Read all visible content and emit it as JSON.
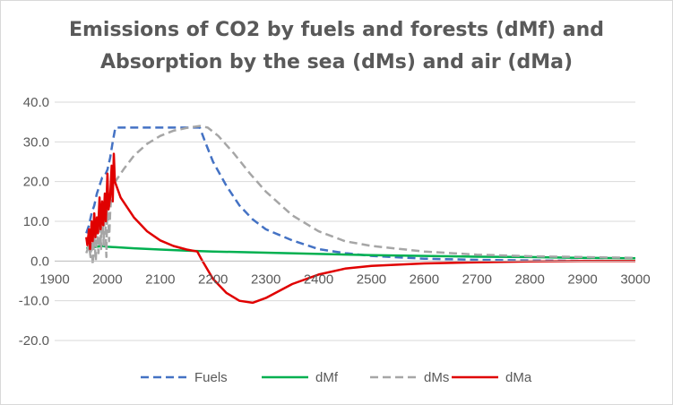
{
  "chart_data": {
    "type": "line",
    "title_lines": [
      "Emissions of CO2 by fuels and forests (dMf) and",
      "Absorption by the sea (dMs) and air (dMa)"
    ],
    "xlabel": "",
    "ylabel": "",
    "xlim": [
      1900,
      3000
    ],
    "ylim": [
      -20,
      40
    ],
    "x_ticks": [
      1900,
      2000,
      2100,
      2200,
      2300,
      2400,
      2500,
      2600,
      2700,
      2800,
      2900,
      3000
    ],
    "y_ticks": [
      "40.0",
      "30.0",
      "20.0",
      "10.0",
      "0.0",
      "-10.0",
      "-20.0"
    ],
    "y_tick_values": [
      40,
      30,
      20,
      10,
      0,
      -10,
      -20
    ],
    "grid": "horizontal",
    "legend_position": "bottom",
    "series": [
      {
        "name": "Fuels",
        "color": "#4472c4",
        "style": "dashed",
        "points": [
          [
            1960,
            7
          ],
          [
            1965,
            9
          ],
          [
            1970,
            12
          ],
          [
            1975,
            14
          ],
          [
            1980,
            17
          ],
          [
            1985,
            19
          ],
          [
            1990,
            21
          ],
          [
            1995,
            21.5
          ],
          [
            2000,
            23
          ],
          [
            2005,
            26
          ],
          [
            2010,
            30
          ],
          [
            2015,
            33.6
          ],
          [
            2050,
            33.6
          ],
          [
            2100,
            33.6
          ],
          [
            2150,
            33.6
          ],
          [
            2175,
            33.6
          ],
          [
            2185,
            30
          ],
          [
            2200,
            25
          ],
          [
            2225,
            19
          ],
          [
            2250,
            14
          ],
          [
            2275,
            10.5
          ],
          [
            2300,
            8
          ],
          [
            2350,
            5.2
          ],
          [
            2400,
            3
          ],
          [
            2450,
            2
          ],
          [
            2500,
            1.3
          ],
          [
            2600,
            0.6
          ],
          [
            2700,
            0.3
          ],
          [
            2800,
            0.15
          ],
          [
            2900,
            0.05
          ],
          [
            3000,
            0
          ]
        ]
      },
      {
        "name": "dMf",
        "color": "#00b050",
        "style": "solid",
        "points": [
          [
            1960,
            3.2
          ],
          [
            1990,
            3.8
          ],
          [
            2000,
            3.6
          ],
          [
            2050,
            3.2
          ],
          [
            2100,
            2.9
          ],
          [
            2150,
            2.6
          ],
          [
            2200,
            2.4
          ],
          [
            2300,
            2.1
          ],
          [
            2400,
            1.8
          ],
          [
            2500,
            1.5
          ],
          [
            2600,
            1.3
          ],
          [
            2700,
            1.1
          ],
          [
            2800,
            1
          ],
          [
            2900,
            0.8
          ],
          [
            3000,
            0.7
          ]
        ]
      },
      {
        "name": "dMs",
        "color": "#a6a6a6",
        "style": "dashed",
        "points": [
          [
            1960,
            2
          ],
          [
            1965,
            4
          ],
          [
            1968,
            1
          ],
          [
            1970,
            5
          ],
          [
            1972,
            -1
          ],
          [
            1975,
            6
          ],
          [
            1978,
            0
          ],
          [
            1980,
            8
          ],
          [
            1983,
            2
          ],
          [
            1986,
            10
          ],
          [
            1988,
            3
          ],
          [
            1990,
            12
          ],
          [
            1993,
            4
          ],
          [
            1995,
            15
          ],
          [
            1998,
            1
          ],
          [
            2000,
            17
          ],
          [
            2003,
            5
          ],
          [
            2005,
            12
          ],
          [
            2008,
            18
          ],
          [
            2015,
            20
          ],
          [
            2030,
            23
          ],
          [
            2050,
            26.5
          ],
          [
            2075,
            29.5
          ],
          [
            2100,
            31.5
          ],
          [
            2125,
            32.8
          ],
          [
            2150,
            33.5
          ],
          [
            2175,
            34
          ],
          [
            2190,
            33.6
          ],
          [
            2210,
            31.5
          ],
          [
            2240,
            27
          ],
          [
            2270,
            22
          ],
          [
            2300,
            17.5
          ],
          [
            2350,
            11.5
          ],
          [
            2400,
            7.5
          ],
          [
            2450,
            5
          ],
          [
            2500,
            3.8
          ],
          [
            2600,
            2.4
          ],
          [
            2700,
            1.6
          ],
          [
            2800,
            1.2
          ],
          [
            2900,
            1
          ],
          [
            3000,
            0.8
          ]
        ]
      },
      {
        "name": "dMa",
        "color": "#e00000",
        "style": "solid",
        "points": [
          [
            1960,
            6
          ],
          [
            1962,
            4
          ],
          [
            1965,
            8
          ],
          [
            1967,
            3
          ],
          [
            1970,
            10
          ],
          [
            1972,
            5
          ],
          [
            1975,
            12
          ],
          [
            1977,
            6
          ],
          [
            1980,
            11
          ],
          [
            1982,
            7
          ],
          [
            1985,
            16
          ],
          [
            1987,
            8
          ],
          [
            1990,
            15
          ],
          [
            1992,
            9
          ],
          [
            1995,
            17
          ],
          [
            1997,
            10
          ],
          [
            2000,
            22
          ],
          [
            2002,
            13
          ],
          [
            2005,
            16
          ],
          [
            2008,
            24
          ],
          [
            2010,
            15
          ],
          [
            2012,
            27
          ],
          [
            2014,
            20
          ],
          [
            2025,
            16
          ],
          [
            2050,
            11
          ],
          [
            2075,
            7.5
          ],
          [
            2100,
            5.2
          ],
          [
            2125,
            3.8
          ],
          [
            2150,
            2.9
          ],
          [
            2170,
            2.4
          ],
          [
            2180,
            0
          ],
          [
            2200,
            -4.5
          ],
          [
            2225,
            -8
          ],
          [
            2250,
            -10
          ],
          [
            2275,
            -10.5
          ],
          [
            2300,
            -9.3
          ],
          [
            2350,
            -5.8
          ],
          [
            2400,
            -3.4
          ],
          [
            2450,
            -1.9
          ],
          [
            2500,
            -1.2
          ],
          [
            2600,
            -0.6
          ],
          [
            2700,
            -0.3
          ],
          [
            2800,
            -0.1
          ],
          [
            2900,
            0
          ],
          [
            3000,
            0
          ]
        ]
      }
    ]
  }
}
